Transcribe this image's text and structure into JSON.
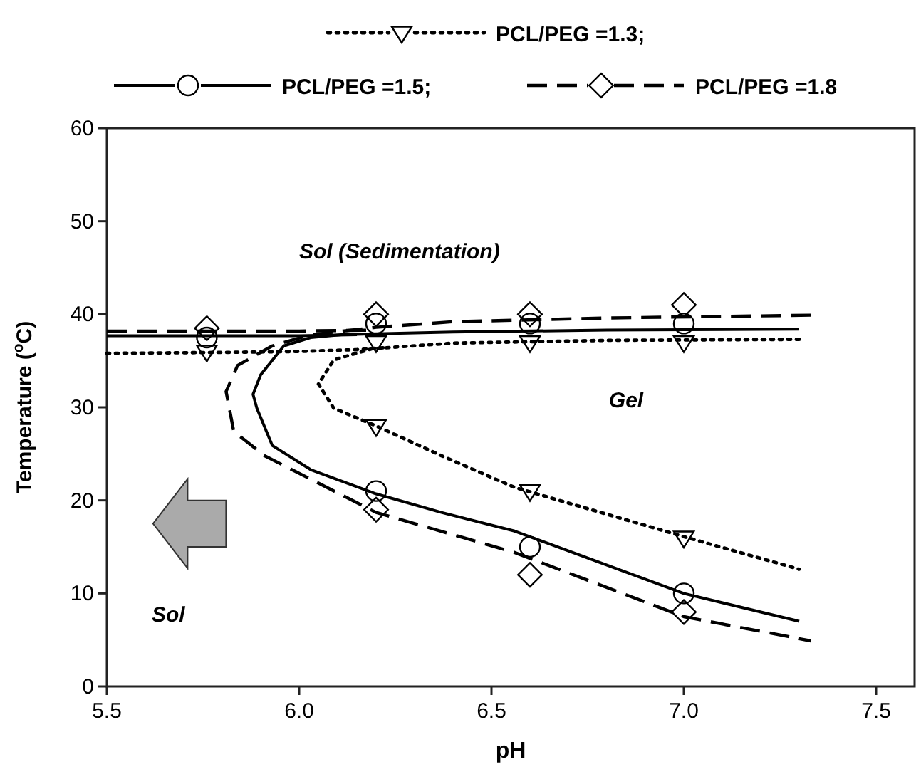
{
  "chart_data": {
    "type": "scatter",
    "xlabel": "pH",
    "ylabel": "Temperature ($^{o}$C)",
    "xlim": [
      5.5,
      7.6
    ],
    "ylim": [
      0,
      60
    ],
    "xticks": [
      {
        "value": 5.5,
        "label": "5.5"
      },
      {
        "value": 6,
        "label": "6.0"
      },
      {
        "value": 6.5,
        "label": "6.5"
      },
      {
        "value": 7,
        "label": "7.0"
      },
      {
        "value": 7.5,
        "label": "7.5"
      }
    ],
    "yticks": [
      0,
      10,
      20,
      30,
      40,
      50,
      60
    ],
    "legend": "top",
    "grid": false,
    "annotations": [
      "Sol (Sedimentation)",
      "Gel",
      "Sol"
    ],
    "series": [
      {
        "color": "#000000",
        "marker": "triangle",
        "x": [
          5.76,
          6.2,
          6.2,
          6.6,
          6.6,
          7.0,
          7.0
        ],
        "values": [
          36,
          37,
          28,
          37,
          21,
          37,
          16
        ]
      },
      {
        "color": "#000000",
        "marker": "circle",
        "x": [
          5.76,
          6.2,
          6.2,
          6.6,
          6.6,
          7.0,
          7.0
        ],
        "values": [
          37.5,
          39,
          21,
          39,
          15,
          39,
          10
        ]
      },
      {
        "color": "#000000",
        "marker": "diamond",
        "x": [
          5.76,
          6.2,
          6.2,
          6.6,
          6.6,
          7.0,
          7.0
        ],
        "values": [
          38.5,
          40,
          19,
          40,
          12,
          41,
          8
        ]
      },
      {
        "type": "line",
        "name": "PCL/PEG =1.3;",
        "color": "#000000",
        "line_style": "dotted",
        "x": [
          7.3,
          6.8,
          6.4,
          6.19,
          6.09,
          6.05,
          6.09,
          6.2,
          6.37,
          6.56,
          7.0,
          7.3
        ],
        "values": [
          37.3,
          37.2,
          36.9,
          36.3,
          35.1,
          32.5,
          29.9,
          28,
          24.8,
          21.4,
          16.1,
          12.6
        ]
      },
      {
        "type": "line",
        "name": "PCL/PEG =1.5;",
        "color": "#000000",
        "line_style": "solid",
        "x": [
          7.3,
          6.8,
          6.4,
          6.11,
          6.03,
          5.96,
          5.9,
          5.88,
          5.89,
          5.93,
          6.03,
          6.2,
          6.37,
          6.56,
          7.0,
          7.3
        ],
        "values": [
          38.4,
          38.3,
          38.1,
          37.8,
          37.5,
          36.6,
          33.5,
          31.4,
          29.9,
          25.9,
          23.3,
          20.7,
          18.7,
          16.7,
          10,
          7
        ]
      },
      {
        "type": "line",
        "name": "PCL/PEG =1.8",
        "color": "#000000",
        "line_style": "dashed",
        "x": [
          7.33,
          6.8,
          6.4,
          6.2,
          6.03,
          5.93,
          5.84,
          5.81,
          5.83,
          5.91,
          6.2,
          6.56,
          7.0,
          7.33
        ],
        "values": [
          39.9,
          39.6,
          39.2,
          38.6,
          37.8,
          36.6,
          34.5,
          31.7,
          27.4,
          24.8,
          18.7,
          14.4,
          7.5,
          4.9
        ]
      },
      {
        "type": "line",
        "color": "#000000",
        "line_style": "dotted",
        "x": [
          5.5,
          5.8,
          6.0,
          6.15,
          6.22
        ],
        "values": [
          35.8,
          35.9,
          36,
          36.2,
          36.4
        ]
      },
      {
        "type": "line",
        "color": "#000000",
        "line_style": "solid",
        "x": [
          5.5,
          5.8,
          6.0,
          6.15
        ],
        "values": [
          37.7,
          37.7,
          37.7,
          37.8
        ]
      },
      {
        "type": "line",
        "color": "#000000",
        "line_style": "dashed",
        "x": [
          5.5,
          5.8,
          6.0,
          6.2
        ],
        "values": [
          38.2,
          38.2,
          38.2,
          38.3
        ]
      }
    ]
  }
}
